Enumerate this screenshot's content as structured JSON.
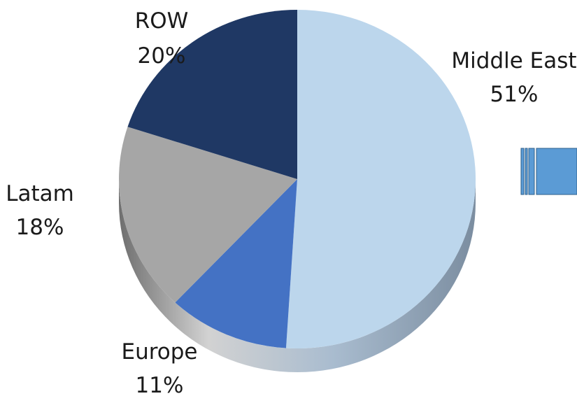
{
  "chart_data": {
    "type": "pie",
    "title": "",
    "categories": [
      "Middle East",
      "Europe",
      "Latam",
      "ROW"
    ],
    "values": [
      51,
      11,
      18,
      20
    ],
    "value_labels": [
      "51%",
      "11%",
      "18%",
      "20%"
    ],
    "colors": [
      "#bcd6ec",
      "#4472c4",
      "#a6a6a6",
      "#1f3864"
    ],
    "legend": "none",
    "start_angle": "12 o'clock",
    "direction": "clockwise",
    "style": "3d-tilted"
  }
}
